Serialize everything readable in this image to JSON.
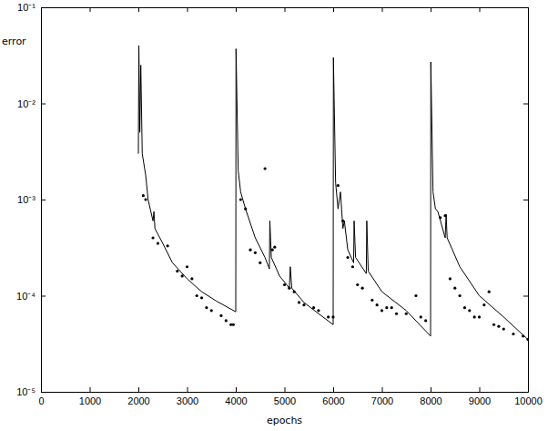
{
  "chart_data": {
    "type": "line",
    "x_label": "epochs",
    "y_label": "error",
    "log": "y",
    "grid": false,
    "xlim": [
      0,
      10000
    ],
    "xticks": [
      0,
      1000,
      2000,
      3000,
      4000,
      5000,
      6000,
      7000,
      8000,
      9000,
      10000
    ],
    "ylim": [
      1e-05,
      0.1
    ],
    "yticks": [
      {
        "value": 1e-05,
        "label": "10⁻⁵"
      },
      {
        "value": 0.0001,
        "label": "10⁻⁴"
      },
      {
        "value": 0.001,
        "label": "10⁻³"
      },
      {
        "value": 0.01,
        "label": "10⁻²"
      },
      {
        "value": 0.1,
        "label": "10⁻¹"
      }
    ],
    "series": [
      {
        "type": "line",
        "color": "#000000",
        "line_style": "solid",
        "x": [
          2000,
          2010,
          2030,
          2050,
          2080,
          2150,
          2200,
          2300,
          2320,
          2340,
          2500,
          2700,
          3000,
          3300,
          3600,
          4000,
          4005,
          4050,
          4100,
          4200,
          4400,
          4600,
          4690,
          4700,
          4730,
          4900,
          5100,
          5120,
          5150,
          5400,
          5700,
          6000,
          6005,
          6050,
          6100,
          6150,
          6200,
          6230,
          6300,
          6420,
          6430,
          6460,
          6680,
          6690,
          6720,
          7000,
          7500,
          8000,
          8005,
          8050,
          8100,
          8150,
          8300,
          8320,
          8340,
          8600,
          9000,
          9500,
          10000
        ],
        "values": [
          0.003,
          0.04,
          0.005,
          0.025,
          0.003,
          0.0018,
          0.001,
          0.0006,
          0.00075,
          0.0005,
          0.00035,
          0.00022,
          0.00015,
          0.00011,
          8.8e-05,
          6.8e-05,
          0.037,
          0.002,
          0.0012,
          0.0008,
          0.0004,
          0.00025,
          0.00019,
          0.0006,
          0.00025,
          0.00016,
          0.00012,
          0.0002,
          0.00012,
          8.5e-05,
          6.5e-05,
          5e-05,
          0.03,
          0.0015,
          0.0008,
          0.0012,
          0.0005,
          0.0006,
          0.0003,
          0.00022,
          0.0006,
          0.00025,
          0.00017,
          0.0006,
          0.00018,
          0.00011,
          7e-05,
          3.8e-05,
          0.027,
          0.0012,
          0.0008,
          0.00075,
          0.0004,
          0.0007,
          0.0004,
          0.0002,
          0.0001,
          6e-05,
          3.5e-05
        ]
      },
      {
        "type": "scatter",
        "color": "#000000",
        "marker": "dot",
        "x": [
          2100,
          2150,
          2300,
          2400,
          2600,
          2800,
          2900,
          3000,
          3100,
          3200,
          3300,
          3400,
          3500,
          3700,
          3800,
          3900,
          3950,
          4100,
          4200,
          4300,
          4400,
          4500,
          4600,
          4750,
          4800,
          5000,
          5100,
          5200,
          5300,
          5400,
          5600,
          5700,
          5900,
          6000,
          6100,
          6200,
          6300,
          6400,
          6500,
          6600,
          6800,
          6900,
          7000,
          7100,
          7200,
          7300,
          7500,
          7700,
          7800,
          7900,
          8200,
          8300,
          8400,
          8500,
          8600,
          8700,
          8800,
          8900,
          9000,
          9100,
          9200,
          9300,
          9400,
          9500,
          9700,
          9900,
          10000
        ],
        "values": [
          0.0011,
          0.001,
          0.0004,
          0.00035,
          0.00033,
          0.00018,
          0.00016,
          0.0002,
          0.00015,
          0.0001,
          9.5e-05,
          7.5e-05,
          7e-05,
          6.2e-05,
          5.5e-05,
          5e-05,
          5e-05,
          0.001,
          0.0008,
          0.0003,
          0.00028,
          0.00022,
          0.0021,
          0.0003,
          0.00032,
          0.00013,
          0.00012,
          0.00011,
          8.5e-05,
          8e-05,
          7.5e-05,
          7e-05,
          6e-05,
          6e-05,
          0.0014,
          0.0006,
          0.00025,
          0.0002,
          0.00013,
          0.00012,
          9e-05,
          8e-05,
          7e-05,
          7.5e-05,
          7.5e-05,
          6.5e-05,
          6.5e-05,
          0.0001,
          6e-05,
          5.5e-05,
          0.00065,
          0.00068,
          0.00015,
          0.00012,
          0.0001,
          7.5e-05,
          7e-05,
          6e-05,
          6e-05,
          8e-05,
          0.00011,
          5e-05,
          4.8e-05,
          4.5e-05,
          4e-05,
          3.8e-05,
          3.5e-05
        ]
      }
    ]
  }
}
